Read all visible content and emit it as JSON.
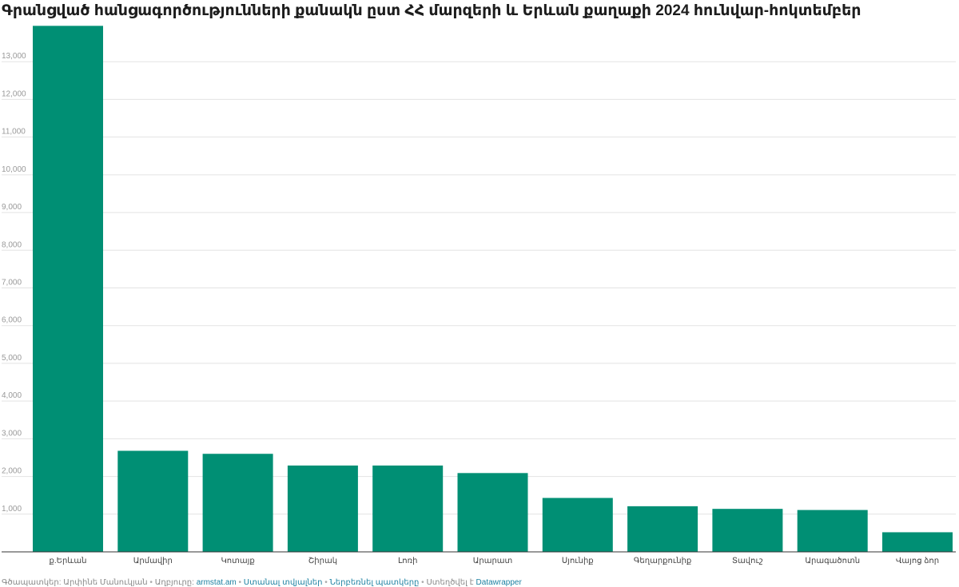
{
  "chart_data": {
    "type": "bar",
    "title": "Գրանցված հանցագործությունների քանակն ըստ ՀՀ մարզերի և Երևան քաղաքի 2024 հունվար-հոկտեմբեր",
    "categories": [
      "ք.Երևան",
      "Արմավիր",
      "Կոտայք",
      "Շիրակ",
      "Լոռի",
      "Արարատ",
      "Սյունիք",
      "Գեղարքունիք",
      "Տավուշ",
      "Արագածոտն",
      "Վայոց ձոր"
    ],
    "values": [
      13950,
      2680,
      2600,
      2290,
      2290,
      2090,
      1430,
      1210,
      1140,
      1110,
      520
    ],
    "ylim": [
      0,
      14000
    ],
    "yticks": [
      1000,
      2000,
      3000,
      4000,
      5000,
      6000,
      7000,
      8000,
      9000,
      10000,
      11000,
      12000,
      13000
    ],
    "ytick_labels": [
      "1,000",
      "2,000",
      "3,000",
      "4,000",
      "5,000",
      "6,000",
      "7,000",
      "8,000",
      "9,000",
      "10,000",
      "11,000",
      "12,000",
      "13,000"
    ],
    "xlabel": "",
    "ylabel": "",
    "grid": true,
    "bar_color": "#008f74",
    "grid_color": "#e3e3e3",
    "baseline_color": "#333333"
  },
  "footer": {
    "author": "Գծապատկեր: Արփինե Մանուկյան",
    "source_label": "Աղբյուրը:",
    "source_link": "armstat.am",
    "get_data": "Ստանալ տվյալներ",
    "download": "Ներբեռնել պատկերը",
    "created_with_label": "Ստեղծվել է",
    "created_with": "Datawrapper",
    "separator": "•"
  }
}
